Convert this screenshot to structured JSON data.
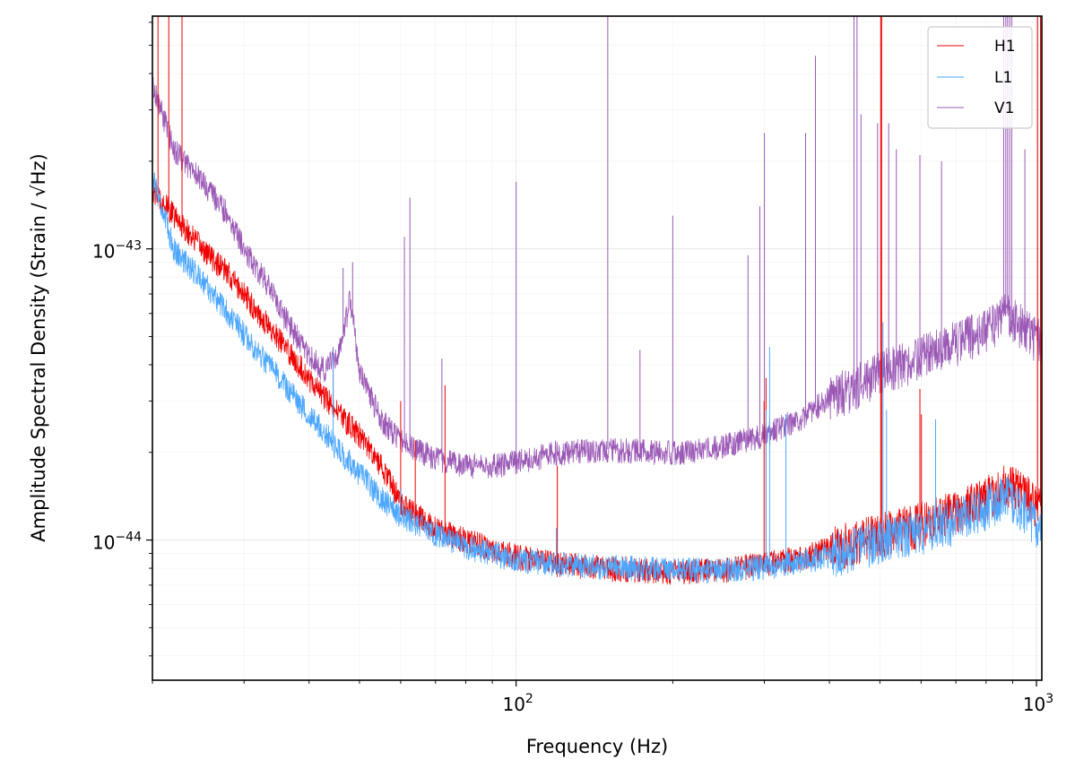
{
  "chart_data": {
    "type": "line",
    "title": "",
    "xlabel": "Frequency (Hz)",
    "ylabel": "Amplitude Spectral Density (Strain / √Hz)",
    "xscale": "log",
    "yscale": "log",
    "xlim": [
      20,
      1024
    ],
    "ylim": [
      3.3e-45,
      6.3e-43
    ],
    "grid": "on (major and minor, light)",
    "legend_position": "top-right",
    "x_ticks": [
      {
        "value": 100,
        "base": "10",
        "exp": "2"
      },
      {
        "value": 1000,
        "base": "10",
        "exp": "3"
      }
    ],
    "y_ticks": [
      {
        "value": 1e-44,
        "base": "10",
        "exp": "−44"
      },
      {
        "value": 1e-43,
        "base": "10",
        "exp": "−43"
      }
    ],
    "series": [
      {
        "name": "H1",
        "color": "#ee0000",
        "x": [
          20,
          22,
          25,
          28,
          30,
          33,
          36,
          40,
          45,
          50,
          55,
          60,
          70,
          80,
          90,
          100,
          120,
          150,
          200,
          250,
          300,
          350,
          400,
          450,
          500,
          600,
          700,
          800,
          880,
          950,
          1024
        ],
        "y": [
          1.6e-43,
          1.3e-43,
          1e-43,
          8.2e-44,
          7e-44,
          5.6e-44,
          4.6e-44,
          3.6e-44,
          2.8e-44,
          2.3e-44,
          1.8e-44,
          1.35e-44,
          1.1e-44,
          1e-44,
          9.3e-45,
          8.8e-45,
          8.3e-45,
          8e-45,
          7.8e-45,
          7.9e-45,
          8.3e-45,
          8.7e-45,
          9.3e-45,
          1e-44,
          1.05e-44,
          1.15e-44,
          1.25e-44,
          1.4e-44,
          1.55e-44,
          1.45e-44,
          1.3e-44
        ],
        "lines": [
          {
            "f": 20.5,
            "a": 6.3e-43
          },
          {
            "f": 21.5,
            "a": 6.3e-43
          },
          {
            "f": 22.8,
            "a": 6.3e-43
          },
          {
            "f": 44.5,
            "a": 4.6e-44
          },
          {
            "f": 60,
            "a": 3e-44
          },
          {
            "f": 64,
            "a": 2.2e-44
          },
          {
            "f": 73,
            "a": 3.4e-44
          },
          {
            "f": 120,
            "a": 1.8e-44
          },
          {
            "f": 299.6,
            "a": 3e-44
          },
          {
            "f": 302.2,
            "a": 3.6e-44
          },
          {
            "f": 502,
            "a": 6.3e-43
          },
          {
            "f": 504,
            "a": 6.3e-43
          },
          {
            "f": 597,
            "a": 3.3e-44
          },
          {
            "f": 601,
            "a": 2.7e-44
          },
          {
            "f": 1005,
            "a": 6.3e-43
          },
          {
            "f": 1018,
            "a": 6.3e-43
          }
        ]
      },
      {
        "name": "L1",
        "color": "#4ba6ff",
        "x": [
          20,
          22,
          25,
          28,
          30,
          33,
          36,
          40,
          45,
          50,
          55,
          60,
          70,
          80,
          90,
          100,
          120,
          150,
          200,
          250,
          300,
          350,
          400,
          450,
          500,
          600,
          700,
          800,
          880,
          950,
          1024
        ],
        "y": [
          1.8e-43,
          1e-43,
          7.8e-44,
          6e-44,
          5.1e-44,
          4.1e-44,
          3.4e-44,
          2.7e-44,
          2.1e-44,
          1.7e-44,
          1.4e-44,
          1.22e-44,
          1.05e-44,
          9.5e-45,
          9e-45,
          8.6e-45,
          8.3e-45,
          8.1e-45,
          7.9e-45,
          7.9e-45,
          8.1e-45,
          8.4e-45,
          8.9e-45,
          9.4e-45,
          1e-44,
          1.08e-44,
          1.17e-44,
          1.3e-44,
          1.45e-44,
          1.25e-44,
          1.05e-44
        ],
        "lines": [
          {
            "f": 44.5,
            "a": 4.6e-44
          },
          {
            "f": 59.9,
            "a": 1.5e-44
          },
          {
            "f": 119.5,
            "a": 1.1e-44
          },
          {
            "f": 302.2,
            "a": 2.8e-44
          },
          {
            "f": 307,
            "a": 4.6e-44
          },
          {
            "f": 330,
            "a": 2.7e-44
          },
          {
            "f": 507,
            "a": 5.6e-44
          },
          {
            "f": 515,
            "a": 2.8e-44
          },
          {
            "f": 640,
            "a": 2.6e-44
          }
        ]
      },
      {
        "name": "V1",
        "color": "#9b59b6",
        "x": [
          20,
          22,
          25,
          28,
          30,
          33,
          36,
          40,
          43,
          46,
          48,
          50,
          55,
          60,
          70,
          80,
          90,
          100,
          120,
          150,
          200,
          250,
          300,
          350,
          400,
          450,
          500,
          600,
          700,
          800,
          880,
          950,
          1024
        ],
        "y": [
          3.7e-43,
          2.2e-43,
          1.7e-43,
          1.3e-43,
          1e-43,
          7.8e-44,
          5.8e-44,
          4.3e-44,
          3.8e-44,
          4.6e-44,
          6.8e-44,
          3.8e-44,
          2.6e-44,
          2.2e-44,
          1.9e-44,
          1.8e-44,
          1.8e-44,
          1.85e-44,
          2e-44,
          2.05e-44,
          2e-44,
          2.1e-44,
          2.3e-44,
          2.6e-44,
          3.1e-44,
          3.4e-44,
          3.8e-44,
          4.3e-44,
          4.8e-44,
          5.3e-44,
          6e-44,
          5.3e-44,
          4.8e-44
        ],
        "lines": [
          {
            "f": 46.5,
            "a": 8.6e-44
          },
          {
            "f": 48.5,
            "a": 9e-44
          },
          {
            "f": 61,
            "a": 1.1e-43
          },
          {
            "f": 62.5,
            "a": 1.5e-43
          },
          {
            "f": 72,
            "a": 4.2e-44
          },
          {
            "f": 100,
            "a": 1.7e-43
          },
          {
            "f": 150,
            "a": 6.3e-43
          },
          {
            "f": 173,
            "a": 4.5e-44
          },
          {
            "f": 200,
            "a": 1.3e-43
          },
          {
            "f": 279,
            "a": 9.5e-44
          },
          {
            "f": 294,
            "a": 1.4e-43
          },
          {
            "f": 300,
            "a": 2.5e-43
          },
          {
            "f": 360,
            "a": 2.5e-43
          },
          {
            "f": 376,
            "a": 4.6e-43
          },
          {
            "f": 446,
            "a": 6.3e-43
          },
          {
            "f": 452,
            "a": 6.3e-43
          },
          {
            "f": 460,
            "a": 2.9e-43
          },
          {
            "f": 495,
            "a": 2.7e-43
          },
          {
            "f": 520,
            "a": 2.7e-43
          },
          {
            "f": 538,
            "a": 2.2e-43
          },
          {
            "f": 597,
            "a": 2.1e-43
          },
          {
            "f": 657,
            "a": 2e-43
          },
          {
            "f": 865,
            "a": 6.3e-43
          },
          {
            "f": 873,
            "a": 6.3e-43
          },
          {
            "f": 880,
            "a": 6.3e-43
          },
          {
            "f": 888,
            "a": 6.3e-43
          },
          {
            "f": 896,
            "a": 6.3e-43
          },
          {
            "f": 950,
            "a": 2.2e-43
          }
        ]
      }
    ]
  }
}
